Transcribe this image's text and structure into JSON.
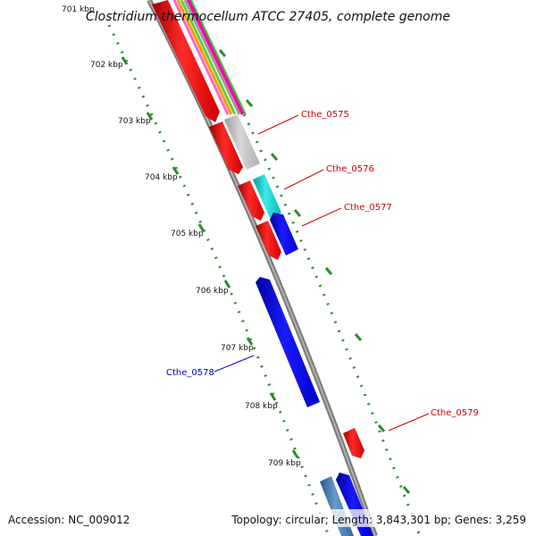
{
  "title": "Clostridium thermocellum ATCC 27405, complete genome",
  "footer": {
    "accession": "Accession: NC_009012",
    "summary": "Topology: circular; Length: 3,843,301 bp; Genes: 3,259"
  },
  "kbp_labels": [
    "701 kbp",
    "702 kbp",
    "703 kbp",
    "704 kbp",
    "705 kbp",
    "706 kbp",
    "707 kbp",
    "708 kbp",
    "709 kbp"
  ],
  "gene_labels": [
    {
      "text": "Cthe_0575",
      "color": "#cc0000"
    },
    {
      "text": "Cthe_0576",
      "color": "#cc0000"
    },
    {
      "text": "Cthe_0577",
      "color": "#cc0000"
    },
    {
      "text": "Cthe_0578",
      "color": "#0000cc"
    },
    {
      "text": "Cthe_0579",
      "color": "#cc0000"
    }
  ],
  "colors": {
    "forward_gene": "#ff0000",
    "reverse_gene": "#0000ff",
    "backbone": "#808080",
    "tick_dots": "#2e8b2e"
  }
}
